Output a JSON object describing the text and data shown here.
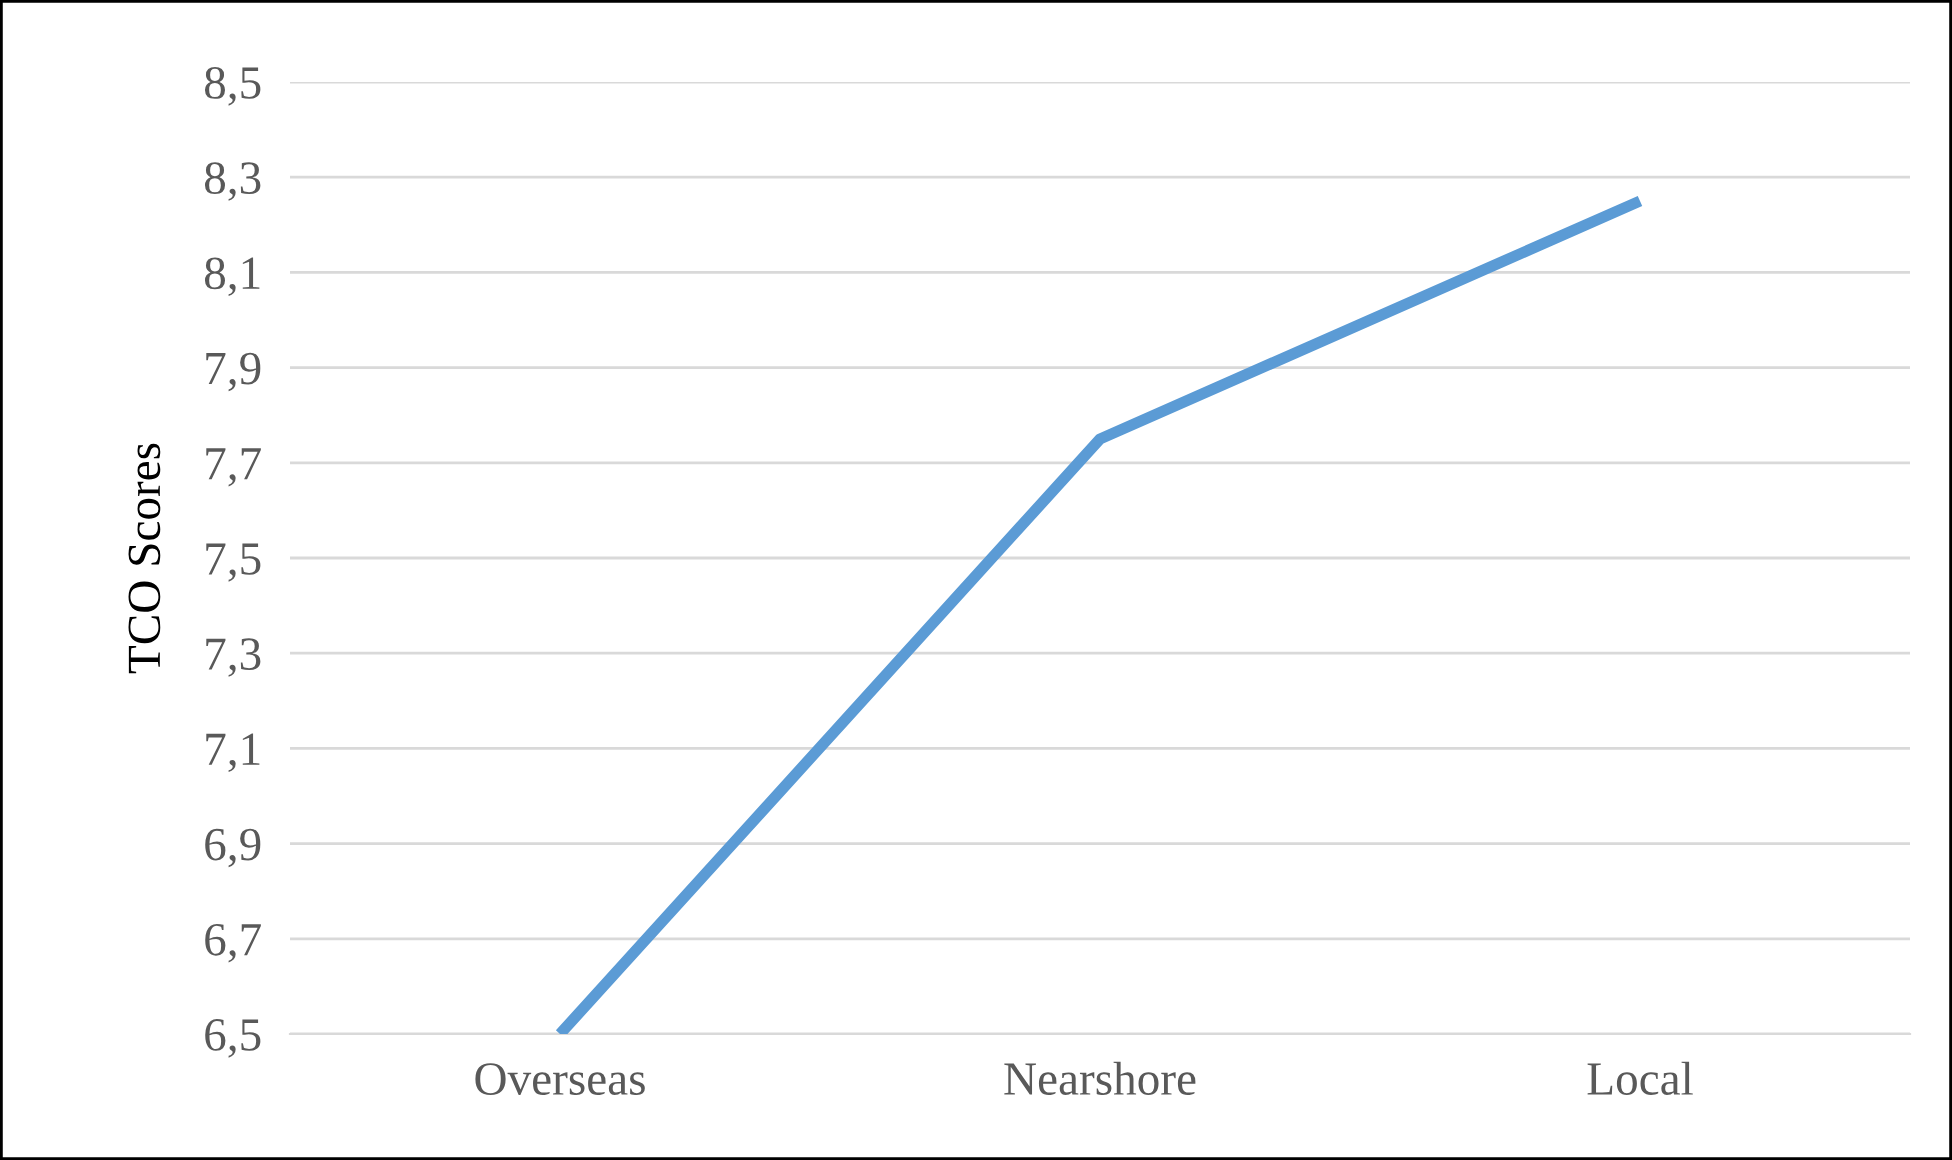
{
  "chart_data": {
    "type": "line",
    "ylabel": "TCO Scores",
    "categories": [
      "Overseas",
      "Nearshore",
      "Local"
    ],
    "series": [
      {
        "color": "#5b9bd5",
        "values": [
          6.5,
          7.75,
          8.25
        ]
      }
    ],
    "ylim": [
      6.5,
      8.5
    ],
    "yticks": [
      {
        "value": 6.5,
        "label": "6,5"
      },
      {
        "value": 6.7,
        "label": "6,7"
      },
      {
        "value": 6.9,
        "label": "6,9"
      },
      {
        "value": 7.1,
        "label": "7,1"
      },
      {
        "value": 7.3,
        "label": "7,3"
      },
      {
        "value": 7.5,
        "label": "7,5"
      },
      {
        "value": 7.7,
        "label": "7,7"
      },
      {
        "value": 7.9,
        "label": "7,9"
      },
      {
        "value": 8.1,
        "label": "8,1"
      },
      {
        "value": 8.3,
        "label": "8,3"
      },
      {
        "value": 8.5,
        "label": "8,5"
      }
    ],
    "grid": "y",
    "marker": "none",
    "line_style": "solid"
  }
}
